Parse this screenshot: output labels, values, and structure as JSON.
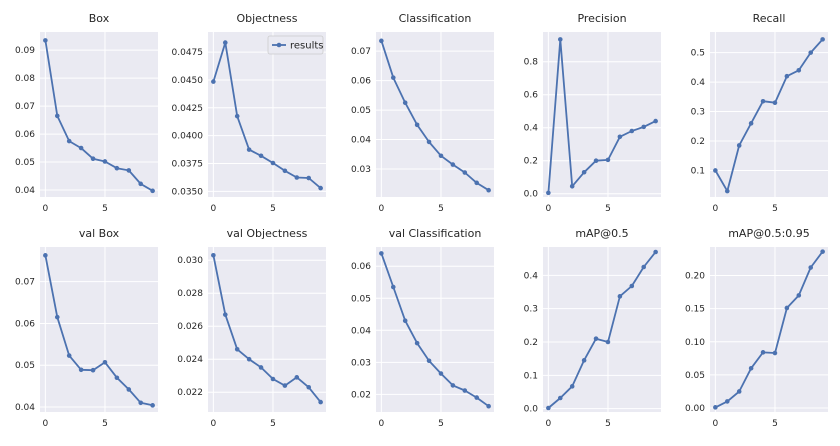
{
  "chart_data": [
    {
      "type": "line",
      "title": "Box",
      "x": [
        0,
        1,
        2,
        3,
        4,
        5,
        6,
        7,
        8,
        9
      ],
      "values": [
        0.0935,
        0.0665,
        0.0575,
        0.055,
        0.0512,
        0.0502,
        0.0478,
        0.047,
        0.0422,
        0.0397
      ],
      "ylim": [
        0.0375,
        0.0965
      ],
      "yticks": [
        "0.09",
        "0.08",
        "0.07",
        "0.06",
        "0.05",
        "0.04"
      ],
      "ytick_values": [
        0.09,
        0.08,
        0.07,
        0.06,
        0.05,
        0.04
      ],
      "xticks": [
        "0",
        "5"
      ],
      "xtick_values": [
        0,
        5
      ]
    },
    {
      "type": "line",
      "title": "Objectness",
      "x": [
        0,
        1,
        2,
        3,
        4,
        5,
        6,
        7,
        8,
        9
      ],
      "values": [
        0.04485,
        0.04835,
        0.04175,
        0.03875,
        0.0382,
        0.03755,
        0.03685,
        0.03625,
        0.0362,
        0.0353
      ],
      "ylim": [
        0.0345,
        0.0493
      ],
      "yticks": [
        "0.0475",
        "0.0450",
        "0.0425",
        "0.0400",
        "0.0375",
        "0.0350"
      ],
      "ytick_values": [
        0.0475,
        0.045,
        0.0425,
        0.04,
        0.0375,
        0.035
      ],
      "xticks": [
        "0",
        "5"
      ],
      "xtick_values": [
        0,
        5
      ],
      "legend": "results"
    },
    {
      "type": "line",
      "title": "Classification",
      "x": [
        0,
        1,
        2,
        3,
        4,
        5,
        6,
        7,
        8,
        9
      ],
      "values": [
        0.0735,
        0.061,
        0.0525,
        0.045,
        0.0392,
        0.0345,
        0.0315,
        0.0288,
        0.0253,
        0.0228
      ],
      "ylim": [
        0.0205,
        0.0765
      ],
      "yticks": [
        "0.07",
        "0.06",
        "0.05",
        "0.04",
        "0.03"
      ],
      "ytick_values": [
        0.07,
        0.06,
        0.05,
        0.04,
        0.03
      ],
      "xticks": [
        "0",
        "5"
      ],
      "xtick_values": [
        0,
        5
      ]
    },
    {
      "type": "line",
      "title": "Precision",
      "x": [
        0,
        1,
        2,
        3,
        4,
        5,
        6,
        7,
        8,
        9
      ],
      "values": [
        0.005,
        0.935,
        0.045,
        0.13,
        0.2,
        0.205,
        0.345,
        0.38,
        0.405,
        0.44
      ],
      "ylim": [
        -0.02,
        0.98
      ],
      "yticks": [
        "0.8",
        "0.6",
        "0.4",
        "0.2",
        "0.0"
      ],
      "ytick_values": [
        0.8,
        0.6,
        0.4,
        0.2,
        0.0
      ],
      "xticks": [
        "0",
        "5"
      ],
      "xtick_values": [
        0,
        5
      ]
    },
    {
      "type": "line",
      "title": "Recall",
      "x": [
        0,
        1,
        2,
        3,
        4,
        5,
        6,
        7,
        8,
        9
      ],
      "values": [
        0.1,
        0.03,
        0.185,
        0.26,
        0.335,
        0.33,
        0.42,
        0.44,
        0.5,
        0.545
      ],
      "ylim": [
        0.01,
        0.57
      ],
      "yticks": [
        "0.5",
        "0.4",
        "0.3",
        "0.2",
        "0.1"
      ],
      "ytick_values": [
        0.5,
        0.4,
        0.3,
        0.2,
        0.1
      ],
      "xticks": [
        "0",
        "5"
      ],
      "xtick_values": [
        0,
        5
      ]
    },
    {
      "type": "line",
      "title": "val Box",
      "x": [
        0,
        1,
        2,
        3,
        4,
        5,
        6,
        7,
        8,
        9
      ],
      "values": [
        0.0763,
        0.0615,
        0.0523,
        0.0489,
        0.0488,
        0.0507,
        0.047,
        0.0442,
        0.041,
        0.0404
      ],
      "ylim": [
        0.0388,
        0.0783
      ],
      "yticks": [
        "0.07",
        "0.06",
        "0.05",
        "0.04"
      ],
      "ytick_values": [
        0.07,
        0.06,
        0.05,
        0.04
      ],
      "xticks": [
        "0",
        "5"
      ],
      "xtick_values": [
        0,
        5
      ]
    },
    {
      "type": "line",
      "title": "val Objectness",
      "x": [
        0,
        1,
        2,
        3,
        4,
        5,
        6,
        7,
        8,
        9
      ],
      "values": [
        0.0303,
        0.0267,
        0.0246,
        0.024,
        0.0235,
        0.0228,
        0.0224,
        0.0229,
        0.0223,
        0.0214
      ],
      "ylim": [
        0.0208,
        0.0308
      ],
      "yticks": [
        "0.030",
        "0.028",
        "0.026",
        "0.024",
        "0.022"
      ],
      "ytick_values": [
        0.03,
        0.028,
        0.026,
        0.024,
        0.022
      ],
      "xticks": [
        "0",
        "5"
      ],
      "xtick_values": [
        0,
        5
      ]
    },
    {
      "type": "line",
      "title": "val Classification",
      "x": [
        0,
        1,
        2,
        3,
        4,
        5,
        6,
        7,
        8,
        9
      ],
      "values": [
        0.064,
        0.0535,
        0.043,
        0.036,
        0.0305,
        0.0265,
        0.0228,
        0.0212,
        0.019,
        0.0163
      ],
      "ylim": [
        0.0145,
        0.066
      ],
      "yticks": [
        "0.06",
        "0.05",
        "0.04",
        "0.03",
        "0.02"
      ],
      "ytick_values": [
        0.06,
        0.05,
        0.04,
        0.03,
        0.02
      ],
      "xticks": [
        "0",
        "5"
      ],
      "xtick_values": [
        0,
        5
      ]
    },
    {
      "type": "line",
      "title": "mAP@0.5",
      "x": [
        0,
        1,
        2,
        3,
        4,
        5,
        6,
        7,
        8,
        9
      ],
      "values": [
        0.002,
        0.032,
        0.067,
        0.145,
        0.21,
        0.2,
        0.337,
        0.368,
        0.425,
        0.47
      ],
      "ylim": [
        -0.01,
        0.485
      ],
      "yticks": [
        "0.4",
        "0.3",
        "0.2",
        "0.1",
        "0.0"
      ],
      "ytick_values": [
        0.4,
        0.3,
        0.2,
        0.1,
        0.0
      ],
      "xticks": [
        "0",
        "5"
      ],
      "xtick_values": [
        0,
        5
      ]
    },
    {
      "type": "line",
      "title": "mAP@0.5:0.95",
      "x": [
        0,
        1,
        2,
        3,
        4,
        5,
        6,
        7,
        8,
        9
      ],
      "values": [
        0.001,
        0.01,
        0.025,
        0.06,
        0.084,
        0.083,
        0.151,
        0.17,
        0.212,
        0.236
      ],
      "ylim": [
        -0.006,
        0.243
      ],
      "yticks": [
        "0.20",
        "0.15",
        "0.10",
        "0.05",
        "0.00"
      ],
      "ytick_values": [
        0.2,
        0.15,
        0.1,
        0.05,
        0.0
      ],
      "xticks": [
        "0",
        "5"
      ],
      "xtick_values": [
        0,
        5
      ]
    }
  ],
  "colors": {
    "line": "#4c72b0",
    "panel_bg": "#eaeaf2",
    "grid": "#ffffff",
    "text": "#262626"
  }
}
